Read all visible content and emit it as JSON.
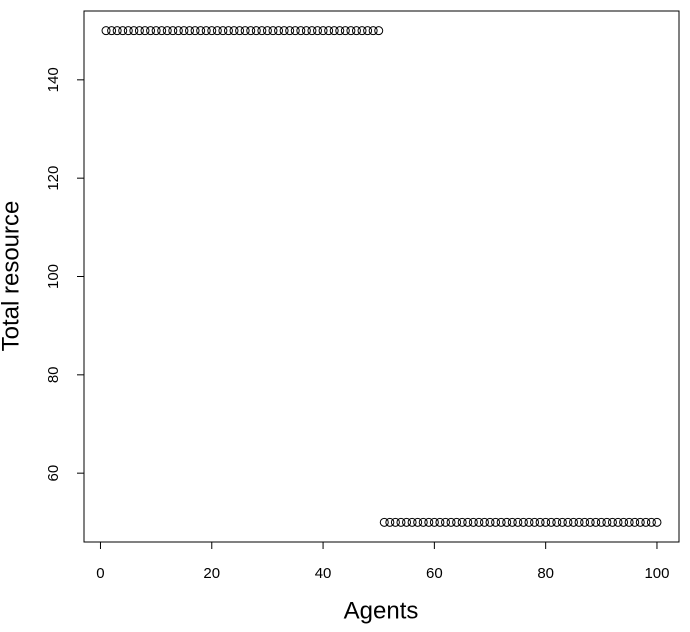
{
  "chart_data": {
    "type": "scatter",
    "xlabel": "Agents",
    "ylabel": "Total resource",
    "x": [
      1,
      2,
      3,
      4,
      5,
      6,
      7,
      8,
      9,
      10,
      11,
      12,
      13,
      14,
      15,
      16,
      17,
      18,
      19,
      20,
      21,
      22,
      23,
      24,
      25,
      26,
      27,
      28,
      29,
      30,
      31,
      32,
      33,
      34,
      35,
      36,
      37,
      38,
      39,
      40,
      41,
      42,
      43,
      44,
      45,
      46,
      47,
      48,
      49,
      50,
      51,
      52,
      53,
      54,
      55,
      56,
      57,
      58,
      59,
      60,
      61,
      62,
      63,
      64,
      65,
      66,
      67,
      68,
      69,
      70,
      71,
      72,
      73,
      74,
      75,
      76,
      77,
      78,
      79,
      80,
      81,
      82,
      83,
      84,
      85,
      86,
      87,
      88,
      89,
      90,
      91,
      92,
      93,
      94,
      95,
      96,
      97,
      98,
      99,
      100
    ],
    "values": [
      150,
      150,
      150,
      150,
      150,
      150,
      150,
      150,
      150,
      150,
      150,
      150,
      150,
      150,
      150,
      150,
      150,
      150,
      150,
      150,
      150,
      150,
      150,
      150,
      150,
      150,
      150,
      150,
      150,
      150,
      150,
      150,
      150,
      150,
      150,
      150,
      150,
      150,
      150,
      150,
      150,
      150,
      150,
      150,
      150,
      150,
      150,
      150,
      150,
      150,
      50,
      50,
      50,
      50,
      50,
      50,
      50,
      50,
      50,
      50,
      50,
      50,
      50,
      50,
      50,
      50,
      50,
      50,
      50,
      50,
      50,
      50,
      50,
      50,
      50,
      50,
      50,
      50,
      50,
      50,
      50,
      50,
      50,
      50,
      50,
      50,
      50,
      50,
      50,
      50,
      50,
      50,
      50,
      50,
      50,
      50,
      50,
      50,
      50,
      50
    ],
    "color": "#000000",
    "xlim": [
      -2.96,
      103.96
    ],
    "xticks": [
      0,
      20,
      40,
      60,
      80,
      100
    ],
    "ylim": [
      46,
      154
    ],
    "yticks": [
      60,
      80,
      100,
      120,
      140
    ]
  }
}
